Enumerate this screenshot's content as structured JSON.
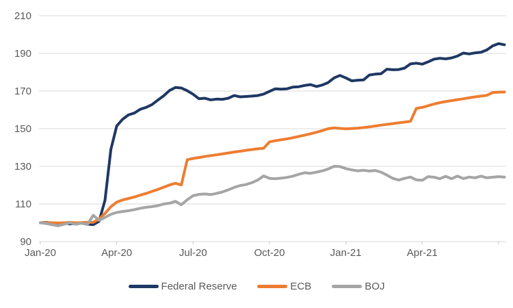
{
  "chart_data": {
    "type": "line",
    "title": "",
    "frequency": "weekly",
    "index_base": 100,
    "grid": "horizontal",
    "legend_position": "bottom",
    "x_axis": {
      "labels": [
        "Jan-20",
        "Apr-20",
        "Jul-20",
        "Oct-20",
        "Jan-21",
        "Apr-21"
      ],
      "label_every_weeks": 13,
      "range_start": "Jan-20",
      "range_end": "Jun-21"
    },
    "y_axis": {
      "min": 90,
      "max": 210,
      "step": 20,
      "ticks": [
        210,
        190,
        170,
        150,
        130,
        110,
        90
      ]
    },
    "series": [
      {
        "name": "Federal Reserve",
        "color": "#1F3864",
        "values": [
          100.0,
          100.2,
          99.8,
          99.6,
          100.0,
          99.4,
          99.6,
          99.9,
          99.3,
          99.0,
          100.8,
          112.0,
          139.0,
          151.5,
          155.0,
          157.3,
          158.3,
          160.3,
          161.3,
          162.8,
          165.2,
          167.5,
          170.3,
          171.9,
          171.6,
          170.2,
          168.3,
          165.9,
          166.2,
          165.3,
          165.7,
          165.6,
          166.2,
          167.6,
          166.9,
          167.1,
          167.3,
          167.6,
          168.4,
          169.8,
          171.2,
          171.0,
          171.2,
          172.1,
          172.3,
          173.0,
          173.4,
          172.4,
          173.2,
          174.5,
          177.0,
          178.3,
          177.0,
          175.4,
          175.7,
          175.9,
          178.5,
          179.0,
          179.2,
          181.6,
          181.3,
          181.4,
          182.2,
          184.4,
          184.8,
          184.3,
          185.5,
          186.9,
          187.4,
          187.1,
          187.6,
          188.6,
          190.2,
          189.7,
          190.3,
          190.6,
          191.8,
          194.0,
          195.2,
          194.6
        ]
      },
      {
        "name": "ECB",
        "color": "#ED7D31",
        "values": [
          100.0,
          100.1,
          100.0,
          99.9,
          100.0,
          100.2,
          100.0,
          100.1,
          100.3,
          100.2,
          102.0,
          105.0,
          108.5,
          111.0,
          112.1,
          112.9,
          113.7,
          114.7,
          115.6,
          116.7,
          117.7,
          118.9,
          120.1,
          121.0,
          120.1,
          133.5,
          134.2,
          134.7,
          135.2,
          135.7,
          136.1,
          136.6,
          137.1,
          137.6,
          138.0,
          138.5,
          138.9,
          139.3,
          139.6,
          143.0,
          143.6,
          144.1,
          144.6,
          145.2,
          145.9,
          146.6,
          147.3,
          148.1,
          149.0,
          150.0,
          150.4,
          150.2,
          149.9,
          150.1,
          150.3,
          150.6,
          151.0,
          151.4,
          151.9,
          152.3,
          152.7,
          153.1,
          153.5,
          153.9,
          160.8,
          161.3,
          162.2,
          163.1,
          163.8,
          164.4,
          164.9,
          165.4,
          165.9,
          166.4,
          166.9,
          167.3,
          167.7,
          169.2,
          169.4,
          169.5
        ]
      },
      {
        "name": "BOJ",
        "color": "#A5A5A5",
        "values": [
          100.0,
          99.6,
          99.0,
          98.4,
          99.2,
          100.0,
          99.2,
          99.8,
          99.1,
          104.0,
          101.3,
          102.8,
          104.5,
          105.5,
          106.0,
          106.4,
          107.0,
          107.7,
          108.2,
          108.6,
          109.1,
          110.0,
          110.4,
          111.4,
          109.6,
          112.2,
          114.4,
          115.1,
          115.3,
          115.0,
          115.6,
          116.4,
          117.5,
          118.8,
          119.8,
          120.3,
          121.3,
          122.7,
          124.9,
          123.6,
          123.4,
          123.7,
          124.1,
          124.8,
          125.8,
          126.6,
          126.3,
          126.9,
          127.6,
          128.6,
          130.0,
          129.9,
          128.8,
          128.1,
          127.6,
          127.9,
          127.5,
          127.8,
          126.9,
          125.3,
          123.6,
          122.7,
          123.6,
          124.3,
          122.8,
          122.6,
          124.5,
          124.2,
          123.4,
          124.7,
          123.4,
          124.8,
          123.5,
          124.3,
          123.9,
          124.8,
          123.9,
          124.2,
          124.5,
          124.3
        ]
      }
    ]
  },
  "style": {
    "background": "#FFFFFF",
    "gridline_color": "#D9D9D9",
    "axis_color": "#C6C6C6",
    "label_color": "#595959"
  }
}
